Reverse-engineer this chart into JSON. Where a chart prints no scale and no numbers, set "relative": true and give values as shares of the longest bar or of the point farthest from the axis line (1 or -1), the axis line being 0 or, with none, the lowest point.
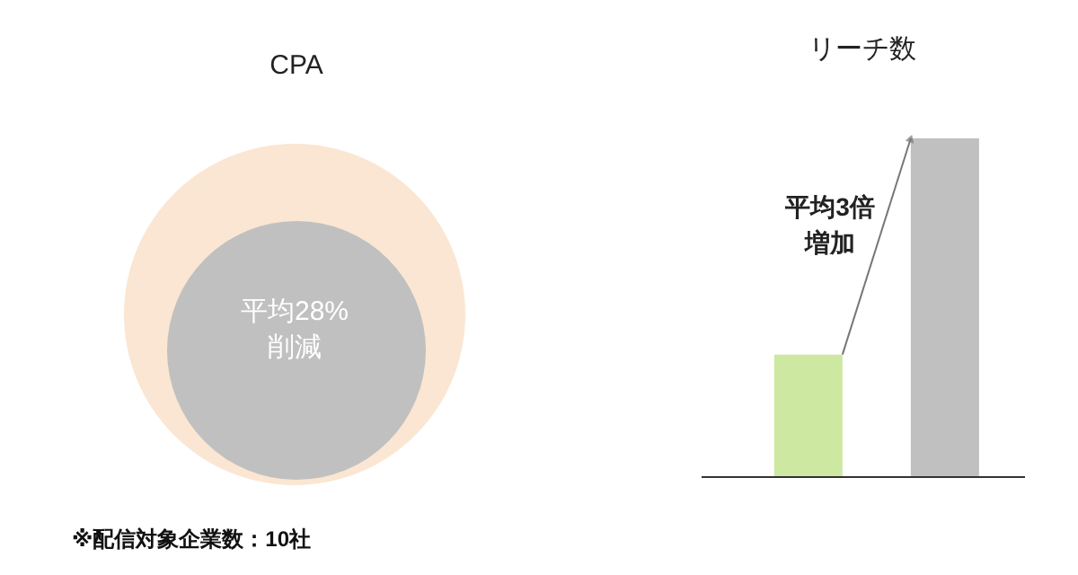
{
  "chart_data": [
    {
      "type": "other",
      "title": "CPA",
      "annotations": [
        "平均28%削減",
        "※配信対象企業数：10社"
      ]
    },
    {
      "type": "bar",
      "title": "リーチ数",
      "categories": [
        null,
        null
      ],
      "values": [
        0.36,
        1
      ],
      "colors": [
        "#cde8a0",
        "#c0c0c0"
      ],
      "relative": true,
      "annotations": [
        "平均3倍増加"
      ]
    }
  ]
}
